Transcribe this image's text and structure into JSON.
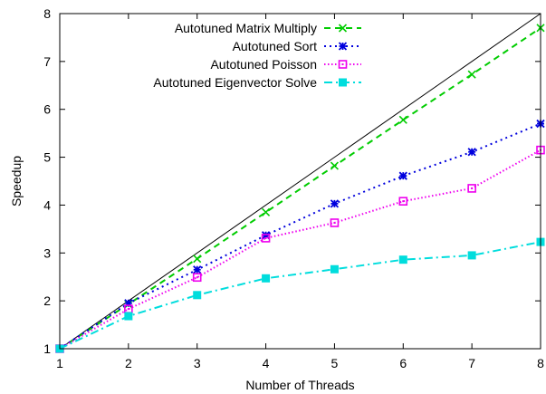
{
  "chart_data": {
    "type": "line",
    "title": "",
    "xlabel": "Number of Threads",
    "ylabel": "Speedup",
    "xlim": [
      1,
      8
    ],
    "ylim": [
      1,
      8
    ],
    "x_ticks": [
      1,
      2,
      3,
      4,
      5,
      6,
      7,
      8
    ],
    "y_ticks": [
      1,
      2,
      3,
      4,
      5,
      6,
      7,
      8
    ],
    "grid": false,
    "legend_position": "top-left",
    "reference_line": {
      "x": [
        1,
        8
      ],
      "y": [
        1,
        8
      ],
      "color": "#000000"
    },
    "x": [
      1,
      2,
      3,
      4,
      5,
      6,
      7,
      8
    ],
    "series": [
      {
        "name": "Autotuned Matrix Multiply",
        "color": "#00cc00",
        "marker": "x",
        "dash": "dashed",
        "values": [
          1.0,
          1.93,
          2.88,
          3.85,
          4.82,
          5.78,
          6.73,
          7.7
        ]
      },
      {
        "name": "Autotuned Sort",
        "color": "#0000dd",
        "marker": "star",
        "dash": "dotted",
        "values": [
          1.0,
          1.95,
          2.65,
          3.37,
          4.03,
          4.61,
          5.11,
          5.7
        ]
      },
      {
        "name": "Autotuned Poisson",
        "color": "#ee00ee",
        "marker": "open-square",
        "dash": "fine-dotted",
        "values": [
          1.0,
          1.83,
          2.49,
          3.31,
          3.63,
          4.08,
          4.35,
          5.15
        ]
      },
      {
        "name": "Autotuned Eigenvector Solve",
        "color": "#00dddd",
        "marker": "filled-square",
        "dash": "dash-dot",
        "values": [
          1.0,
          1.68,
          2.12,
          2.47,
          2.66,
          2.86,
          2.95,
          3.23
        ]
      }
    ]
  }
}
